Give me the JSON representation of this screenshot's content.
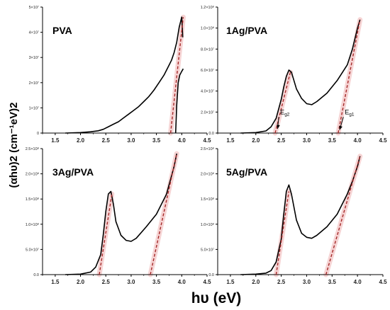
{
  "figure": {
    "ylabel": "(αhυ)2 (cm⁻¹eV)2",
    "xlabel": "hυ (eV)"
  },
  "colors": {
    "curve": "#000000",
    "fit": "#a52a2a",
    "highlight": "#f3c6c6"
  },
  "chart_data": [
    {
      "type": "line",
      "panel_label": "PVA",
      "xlim": [
        1.25,
        4.5
      ],
      "ylim": [
        0,
        50000000
      ],
      "xticks": [
        "1.5",
        "2.0",
        "2.5",
        "3.0",
        "3.5",
        "4.0",
        "4.5"
      ],
      "yticks": [
        {
          "value": 0,
          "label": "0"
        },
        {
          "value": 10000000,
          "label": "1×10⁷"
        },
        {
          "value": 20000000,
          "label": "2×10⁷"
        },
        {
          "value": 30000000,
          "label": "3×10⁷"
        },
        {
          "value": 40000000,
          "label": "4×10⁷"
        },
        {
          "value": 50000000,
          "label": "5×10⁷"
        }
      ],
      "series": [
        {
          "style": "solid",
          "x": [
            1.7,
            2.0,
            2.2,
            2.35,
            2.45,
            2.55,
            2.65,
            2.75,
            2.85,
            2.95,
            3.05,
            3.15,
            3.25,
            3.35,
            3.45,
            3.55,
            3.65,
            3.75,
            3.8,
            3.85,
            3.9,
            3.95,
            4.0,
            4.02
          ],
          "y": [
            0,
            200000,
            500000,
            900000,
            1500000,
            2500000,
            3500000,
            4500000,
            6000000,
            7500000,
            9000000,
            10500000,
            12500000,
            14500000,
            17000000,
            20000000,
            23000000,
            27000000,
            29000000,
            32000000,
            36000000,
            42000000,
            46000000,
            38000000
          ]
        },
        {
          "style": "solid",
          "x": [
            3.88,
            3.9,
            3.93,
            3.96,
            4.0,
            4.03
          ],
          "y": [
            0,
            11000000,
            20000000,
            23000000,
            24500000,
            25500000
          ]
        },
        {
          "style": "dashed",
          "x": [
            3.78,
            4.03
          ],
          "y": [
            0,
            46000000
          ]
        }
      ],
      "annotations": []
    },
    {
      "type": "line",
      "panel_label": "1Ag/PVA",
      "xlim": [
        1.25,
        4.5
      ],
      "ylim": [
        0,
        120000000
      ],
      "xticks": [
        "1.5",
        "2.0",
        "2.5",
        "3.0",
        "3.5",
        "4.0",
        "4.5"
      ],
      "yticks": [
        {
          "value": 0,
          "label": "0.0"
        },
        {
          "value": 20000000,
          "label": "2.0×10⁷"
        },
        {
          "value": 40000000,
          "label": "4.0×10⁷"
        },
        {
          "value": 60000000,
          "label": "6.0×10⁷"
        },
        {
          "value": 80000000,
          "label": "8.0×10⁷"
        },
        {
          "value": 100000000,
          "label": "1.0×10⁸"
        },
        {
          "value": 120000000,
          "label": "1.2×10⁸"
        }
      ],
      "series": [
        {
          "style": "solid",
          "x": [
            1.7,
            2.0,
            2.2,
            2.3,
            2.4,
            2.5,
            2.55,
            2.6,
            2.65,
            2.7,
            2.8,
            2.9,
            3.0,
            3.1,
            3.2,
            3.4,
            3.6,
            3.8,
            3.9,
            4.0,
            4.05
          ],
          "y": [
            0,
            500000,
            2000000,
            6000000,
            14000000,
            32000000,
            44000000,
            54000000,
            60000000,
            58000000,
            42000000,
            33000000,
            28000000,
            27000000,
            30000000,
            38000000,
            50000000,
            65000000,
            80000000,
            100000000,
            108000000
          ]
        },
        {
          "style": "dashed",
          "x": [
            2.38,
            2.68
          ],
          "y": [
            0,
            58000000
          ]
        },
        {
          "style": "dashed",
          "x": [
            3.62,
            4.05
          ],
          "y": [
            0,
            108000000
          ]
        }
      ],
      "annotations": [
        {
          "text": "E",
          "sub": "g2",
          "x": 2.48,
          "y": 18000000,
          "arrow_to": [
            2.4,
            2000000
          ]
        },
        {
          "text": "E",
          "sub": "g1",
          "x": 3.75,
          "y": 18000000,
          "arrow_to": [
            3.62,
            1000000
          ]
        }
      ]
    },
    {
      "type": "line",
      "panel_label": "3Ag/PVA",
      "xlim": [
        1.25,
        4.5
      ],
      "ylim": [
        0,
        250000000
      ],
      "xticks": [
        "1.5",
        "2.0",
        "2.5",
        "3.0",
        "3.5",
        "4.0",
        "4.5"
      ],
      "yticks": [
        {
          "value": 0,
          "label": "0.0"
        },
        {
          "value": 50000000,
          "label": "5.0×10⁷"
        },
        {
          "value": 100000000,
          "label": "1.0×10⁸"
        },
        {
          "value": 150000000,
          "label": "1.5×10⁸"
        },
        {
          "value": 200000000,
          "label": "2.0×10⁸"
        },
        {
          "value": 250000000,
          "label": "2.5×10⁸"
        }
      ],
      "series": [
        {
          "style": "solid",
          "x": [
            1.7,
            2.0,
            2.2,
            2.3,
            2.4,
            2.45,
            2.5,
            2.55,
            2.6,
            2.65,
            2.7,
            2.8,
            2.9,
            3.0,
            3.1,
            3.3,
            3.5,
            3.7,
            3.85,
            3.9
          ],
          "y": [
            0,
            1000000,
            5000000,
            15000000,
            40000000,
            80000000,
            125000000,
            160000000,
            165000000,
            140000000,
            105000000,
            78000000,
            68000000,
            66000000,
            72000000,
            95000000,
            120000000,
            160000000,
            215000000,
            240000000
          ]
        },
        {
          "style": "dashed",
          "x": [
            2.37,
            2.62
          ],
          "y": [
            0,
            160000000
          ]
        },
        {
          "style": "dashed",
          "x": [
            3.38,
            3.9
          ],
          "y": [
            0,
            240000000
          ]
        }
      ],
      "annotations": []
    },
    {
      "type": "line",
      "panel_label": "5Ag/PVA",
      "xlim": [
        1.25,
        4.5
      ],
      "ylim": [
        0,
        250000000
      ],
      "xticks": [
        "1.5",
        "2.0",
        "2.5",
        "3.0",
        "3.5",
        "4.0",
        "4.5"
      ],
      "yticks": [
        {
          "value": 0,
          "label": "0.0"
        },
        {
          "value": 50000000,
          "label": "5.0×10⁷"
        },
        {
          "value": 100000000,
          "label": "1.0×10⁸"
        },
        {
          "value": 150000000,
          "label": "1.5×10⁸"
        },
        {
          "value": 200000000,
          "label": "2.0×10⁸"
        },
        {
          "value": 250000000,
          "label": "2.5×10⁸"
        }
      ],
      "series": [
        {
          "style": "solid",
          "x": [
            1.7,
            2.0,
            2.2,
            2.3,
            2.4,
            2.5,
            2.55,
            2.6,
            2.65,
            2.7,
            2.8,
            2.9,
            3.0,
            3.1,
            3.2,
            3.4,
            3.6,
            3.8,
            3.9,
            4.0,
            4.05
          ],
          "y": [
            0,
            1000000,
            3000000,
            8000000,
            25000000,
            70000000,
            120000000,
            165000000,
            178000000,
            160000000,
            108000000,
            82000000,
            74000000,
            72000000,
            78000000,
            95000000,
            120000000,
            160000000,
            185000000,
            215000000,
            235000000
          ]
        },
        {
          "style": "dashed",
          "x": [
            2.4,
            2.65
          ],
          "y": [
            0,
            165000000
          ]
        },
        {
          "style": "dashed",
          "x": [
            3.38,
            4.05
          ],
          "y": [
            0,
            235000000
          ]
        }
      ],
      "annotations": []
    }
  ]
}
